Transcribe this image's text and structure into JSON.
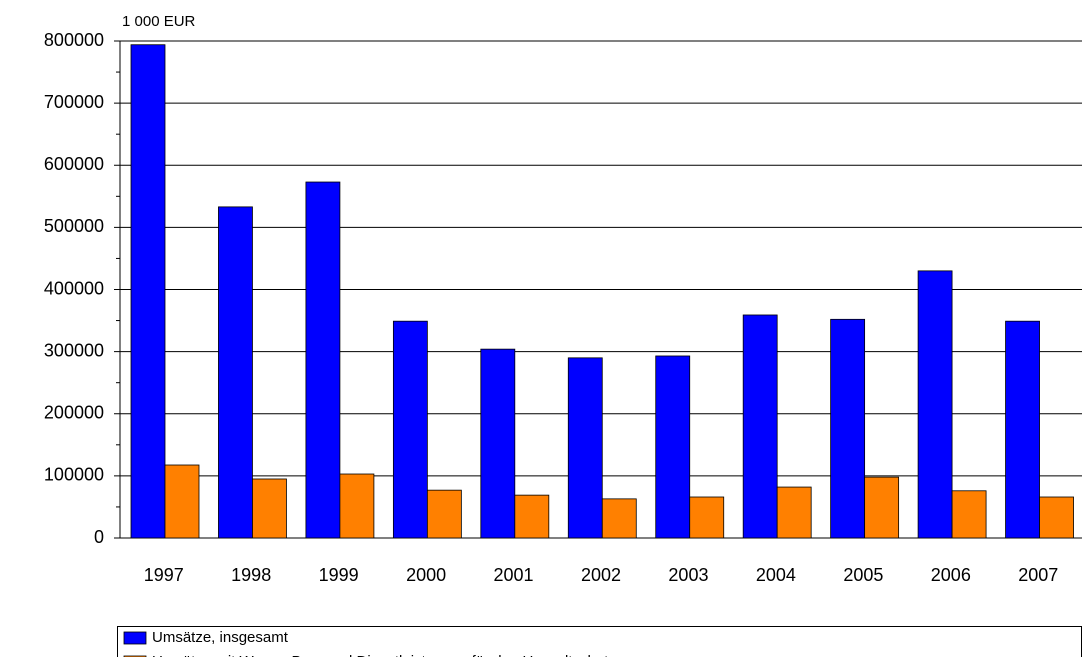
{
  "chart_data": {
    "type": "bar",
    "unit_label": "1 000 EUR",
    "categories": [
      "1997",
      "1998",
      "1999",
      "2000",
      "2001",
      "2002",
      "2003",
      "2004",
      "2005",
      "2006",
      "2007"
    ],
    "series": [
      {
        "name": "Umsätze, insgesamt",
        "color": "#0000ff",
        "values": [
          794000,
          533000,
          573000,
          349000,
          304000,
          290000,
          293000,
          359000,
          352000,
          430000,
          349000
        ]
      },
      {
        "name": "Umsätze mit Waren, Bau- und Dienstleistungen für den Umweltschutz",
        "color": "#ff8000",
        "values": [
          117500,
          95000,
          103000,
          77000,
          69000,
          63000,
          66000,
          82000,
          98000,
          76000,
          66000
        ]
      }
    ],
    "ylim": [
      0,
      800000
    ],
    "yticks": [
      0,
      100000,
      200000,
      300000,
      400000,
      500000,
      600000,
      700000,
      800000
    ],
    "grid": true
  }
}
